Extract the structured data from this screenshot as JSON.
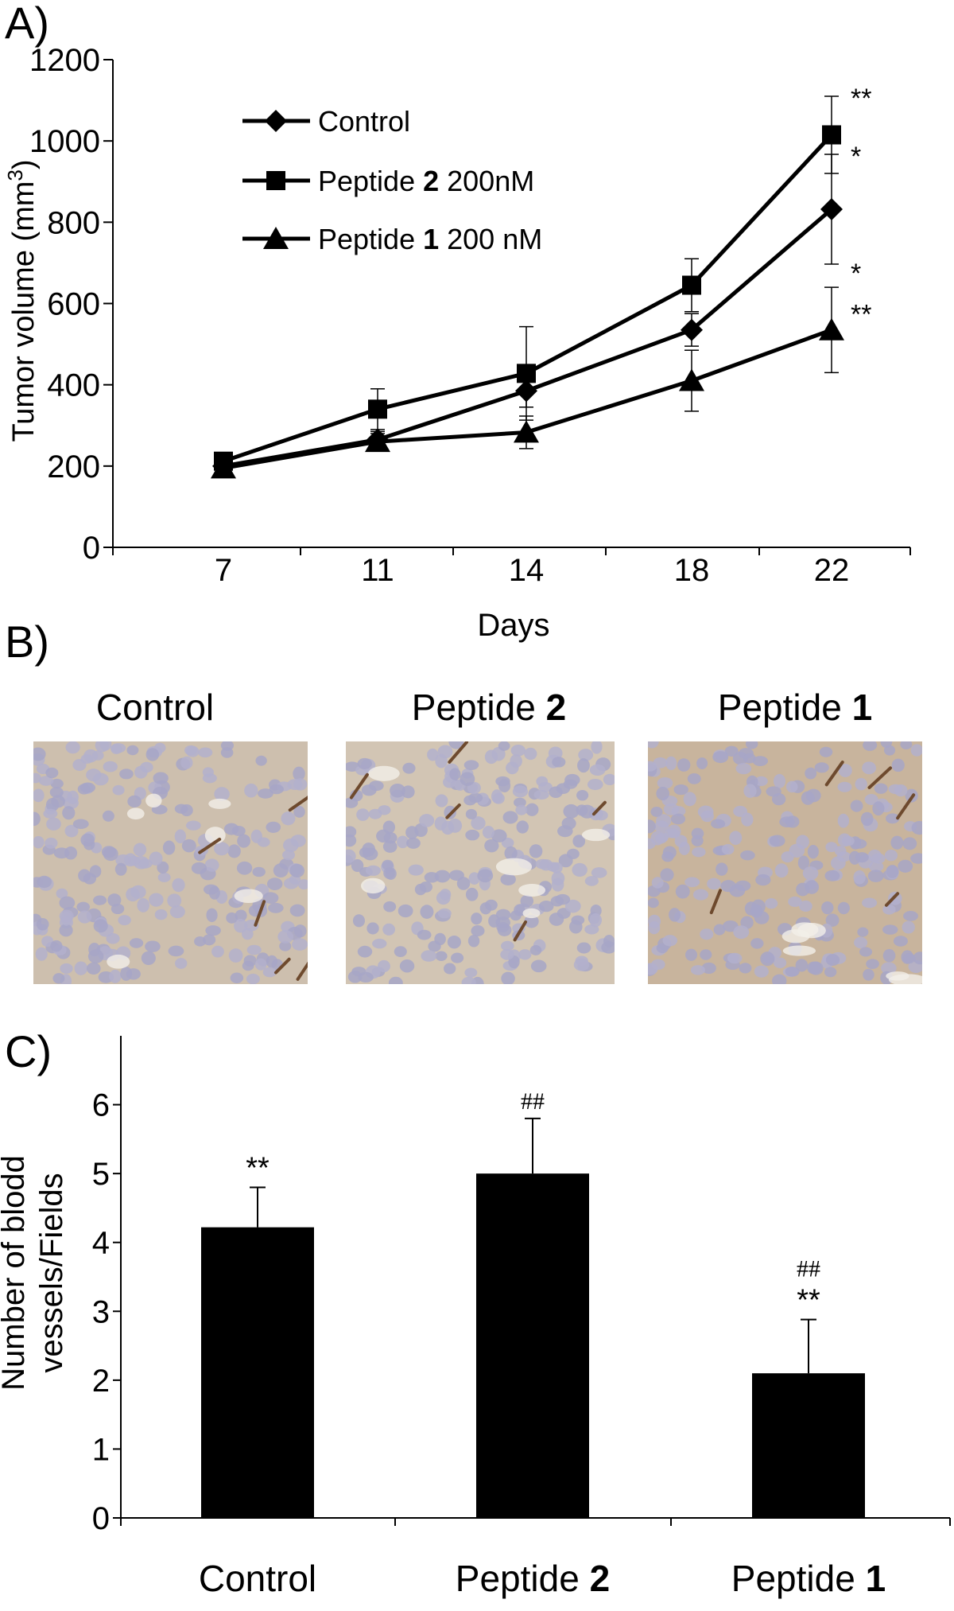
{
  "panels": {
    "a": "A)",
    "b": "B)",
    "c": "C)"
  },
  "chart_data": [
    {
      "type": "line",
      "xlabel": "Days",
      "ylabel": "Tumor volume (mm",
      "ylabel_sup": "3",
      "ylabel_close": ")",
      "categories": [
        "7",
        "11",
        "14",
        "18",
        "22"
      ],
      "ylim": [
        0,
        1200
      ],
      "yticks": [
        "0",
        "200",
        "400",
        "600",
        "800",
        "1000",
        "1200"
      ],
      "legend_position": "top-left",
      "series": [
        {
          "name_parts": [
            "Control",
            "",
            ""
          ],
          "marker": "diamond",
          "values": [
            200,
            265,
            385,
            535,
            832
          ],
          "err": [
            15,
            20,
            40,
            40,
            135
          ]
        },
        {
          "name_parts": [
            "Peptide ",
            "2",
            " 200nM"
          ],
          "marker": "square",
          "values": [
            212,
            340,
            428,
            645,
            1015
          ],
          "err": [
            15,
            50,
            115,
            65,
            95
          ]
        },
        {
          "name_parts": [
            "Peptide ",
            "1",
            " 200 nM"
          ],
          "marker": "triangle",
          "values": [
            195,
            260,
            283,
            410,
            535
          ],
          "err": [
            12,
            20,
            40,
            75,
            105
          ]
        }
      ],
      "annotations": [
        {
          "text": "**",
          "series": 1,
          "x": "22"
        },
        {
          "text": "*",
          "series": 0,
          "x": "22"
        },
        {
          "text": "*",
          "series": 2,
          "x": "22",
          "row": 0
        },
        {
          "text": "**",
          "series": 2,
          "x": "22",
          "row": 1
        }
      ]
    },
    {
      "type": "bar",
      "ylabel_line1": "Number of blodd",
      "ylabel_line2": "vessels/Fields",
      "categories": [
        {
          "text": "Control",
          "bold": ""
        },
        {
          "text": "Peptide ",
          "bold": "2"
        },
        {
          "text": "Peptide ",
          "bold": "1"
        }
      ],
      "values": [
        4.22,
        5.0,
        2.1
      ],
      "err": [
        0.58,
        0.8,
        0.78
      ],
      "ylim": [
        0,
        7
      ],
      "yticks": [
        "0",
        "1",
        "2",
        "3",
        "4",
        "5",
        "6"
      ],
      "bar_color": "#000000",
      "annotations": [
        [
          "**"
        ],
        [
          "##"
        ],
        [
          "##",
          "**"
        ]
      ]
    }
  ],
  "micrographs": [
    {
      "title": "Control",
      "bold": "",
      "tint": "#cdbfae"
    },
    {
      "title": "Peptide ",
      "bold": "2",
      "tint": "#d2c5b4"
    },
    {
      "title": "Peptide ",
      "bold": "1",
      "tint": "#c8b49d"
    }
  ]
}
